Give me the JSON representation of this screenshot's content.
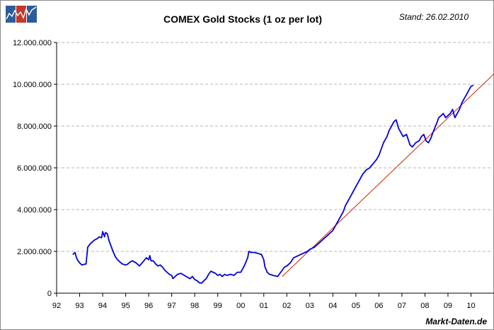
{
  "chart_data": {
    "type": "line",
    "title": "COMEX Gold Stocks (1 oz per lot)",
    "date_label": "Stand: 26.02.2010",
    "source_label": "Markt-Daten.de",
    "xlabel": "",
    "ylabel": "",
    "x_range": [
      1992.0,
      2011.0
    ],
    "ylim": [
      0,
      12000000
    ],
    "y_ticks": [
      {
        "value": 0,
        "label": "0"
      },
      {
        "value": 2000000,
        "label": "2.000.000"
      },
      {
        "value": 4000000,
        "label": "4.000.000"
      },
      {
        "value": 6000000,
        "label": "6.000.000"
      },
      {
        "value": 8000000,
        "label": "8.000.000"
      },
      {
        "value": 10000000,
        "label": "10.000.000"
      },
      {
        "value": 12000000,
        "label": "12.000.000"
      }
    ],
    "x_ticks": [
      {
        "value": 1992,
        "label": "92"
      },
      {
        "value": 1993,
        "label": "93"
      },
      {
        "value": 1994,
        "label": "94"
      },
      {
        "value": 1995,
        "label": "95"
      },
      {
        "value": 1996,
        "label": "96"
      },
      {
        "value": 1997,
        "label": "97"
      },
      {
        "value": 1998,
        "label": "98"
      },
      {
        "value": 1999,
        "label": "99"
      },
      {
        "value": 2000,
        "label": "00"
      },
      {
        "value": 2001,
        "label": "01"
      },
      {
        "value": 2002,
        "label": "02"
      },
      {
        "value": 2003,
        "label": "03"
      },
      {
        "value": 2004,
        "label": "04"
      },
      {
        "value": 2005,
        "label": "05"
      },
      {
        "value": 2006,
        "label": "06"
      },
      {
        "value": 2007,
        "label": "07"
      },
      {
        "value": 2008,
        "label": "08"
      },
      {
        "value": 2009,
        "label": "09"
      },
      {
        "value": 2010,
        "label": "10"
      }
    ],
    "grid": "horizontal dashed",
    "series": [
      {
        "name": "COMEX Gold Stocks",
        "color": "#0000dd",
        "x": [
          1992.7,
          1992.8,
          1992.85,
          1992.9,
          1993.0,
          1993.1,
          1993.2,
          1993.28,
          1993.35,
          1993.45,
          1993.55,
          1993.65,
          1993.75,
          1993.85,
          1993.95,
          1994.0,
          1994.08,
          1994.12,
          1994.2,
          1994.28,
          1994.35,
          1994.45,
          1994.55,
          1994.65,
          1994.75,
          1994.85,
          1995.0,
          1995.1,
          1995.2,
          1995.3,
          1995.45,
          1995.6,
          1995.75,
          1995.9,
          1996.0,
          1996.05,
          1996.1,
          1996.2,
          1996.3,
          1996.4,
          1996.5,
          1996.6,
          1996.7,
          1996.8,
          1996.9,
          1997.0,
          1997.05,
          1997.15,
          1997.25,
          1997.4,
          1997.55,
          1997.7,
          1997.8,
          1997.9,
          1998.0,
          1998.1,
          1998.2,
          1998.3,
          1998.4,
          1998.5,
          1998.6,
          1998.7,
          1998.8,
          1998.9,
          1999.0,
          1999.1,
          1999.2,
          1999.3,
          1999.4,
          1999.55,
          1999.7,
          1999.85,
          2000.0,
          2000.15,
          2000.3,
          2000.35,
          2000.45,
          2000.6,
          2000.75,
          2000.9,
          2001.0,
          2001.05,
          2001.15,
          2001.25,
          2001.4,
          2001.6,
          2001.7,
          2001.8,
          2001.9,
          2002.0,
          2002.15,
          2002.3,
          2002.5,
          2002.7,
          2002.9,
          2003.0,
          2003.2,
          2003.4,
          2003.6,
          2003.8,
          2004.0,
          2004.15,
          2004.3,
          2004.45,
          2004.55,
          2004.7,
          2004.85,
          2005.0,
          2005.15,
          2005.3,
          2005.45,
          2005.6,
          2005.75,
          2005.9,
          2006.0,
          2006.1,
          2006.2,
          2006.35,
          2006.45,
          2006.55,
          2006.65,
          2006.75,
          2006.85,
          2006.95,
          2007.05,
          2007.2,
          2007.35,
          2007.45,
          2007.6,
          2007.75,
          2007.85,
          2007.95,
          2008.05,
          2008.15,
          2008.25,
          2008.35,
          2008.5,
          2008.6,
          2008.7,
          2008.8,
          2008.9,
          2009.0,
          2009.1,
          2009.2,
          2009.3,
          2009.4,
          2009.5,
          2009.6,
          2009.7,
          2009.8,
          2009.9,
          2010.0,
          2010.1
        ],
        "values": [
          1850000,
          1950000,
          1750000,
          1600000,
          1450000,
          1350000,
          1380000,
          1400000,
          2200000,
          2350000,
          2450000,
          2550000,
          2600000,
          2700000,
          2650000,
          2950000,
          2700000,
          2900000,
          2850000,
          2500000,
          2300000,
          2000000,
          1750000,
          1600000,
          1500000,
          1400000,
          1350000,
          1400000,
          1500000,
          1550000,
          1450000,
          1300000,
          1500000,
          1700000,
          1600000,
          1800000,
          1550000,
          1550000,
          1400000,
          1300000,
          1350000,
          1250000,
          1100000,
          1000000,
          900000,
          850000,
          700000,
          800000,
          900000,
          950000,
          850000,
          750000,
          700000,
          800000,
          650000,
          600000,
          500000,
          480000,
          600000,
          700000,
          900000,
          1050000,
          1000000,
          950000,
          850000,
          900000,
          800000,
          900000,
          850000,
          900000,
          850000,
          1000000,
          1000000,
          1300000,
          1700000,
          2000000,
          1950000,
          1950000,
          1900000,
          1850000,
          1600000,
          1250000,
          1000000,
          900000,
          850000,
          800000,
          950000,
          1100000,
          1250000,
          1300000,
          1450000,
          1700000,
          1800000,
          1900000,
          2000000,
          2100000,
          2200000,
          2400000,
          2600000,
          2800000,
          3000000,
          3300000,
          3600000,
          3900000,
          4200000,
          4500000,
          4800000,
          5100000,
          5400000,
          5700000,
          5900000,
          6000000,
          6200000,
          6400000,
          6600000,
          6900000,
          7200000,
          7500000,
          7800000,
          8000000,
          8200000,
          8300000,
          7900000,
          7700000,
          7500000,
          7600000,
          7100000,
          7000000,
          7200000,
          7300000,
          7500000,
          7600000,
          7300000,
          7200000,
          7400000,
          7700000,
          8100000,
          8400000,
          8500000,
          8600000,
          8400000,
          8500000,
          8600000,
          8800000,
          8400000,
          8600000,
          8800000,
          9100000,
          9300000,
          9500000,
          9700000,
          9900000,
          9950000
        ]
      },
      {
        "name": "Trend",
        "color": "#cc2200",
        "x": [
          2001.8,
          2011.0
        ],
        "values": [
          800000,
          10500000
        ]
      }
    ]
  },
  "logo": {
    "colors": [
      "#2b5d9b",
      "#c0392b",
      "#2b5d9b"
    ]
  }
}
